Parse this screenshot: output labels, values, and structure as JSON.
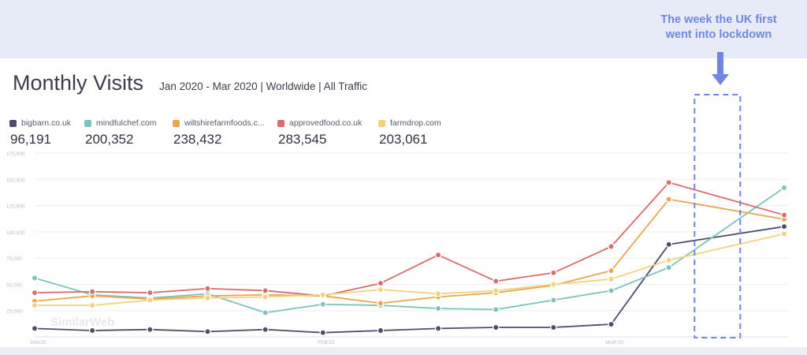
{
  "annotation": {
    "line1": "The week the UK first",
    "line2": "went into lockdown",
    "arrow_icon": "arrow-down-icon",
    "highlight_color": "#6f86e0"
  },
  "header": {
    "title": "Monthly Visits",
    "subtitle": "Jan 2020 - Mar 2020 | Worldwide | All Traffic"
  },
  "legend": [
    {
      "name": "bigbarn.co.uk",
      "total": "96,191",
      "color": "#4b4f6b"
    },
    {
      "name": "mindfulchef.com",
      "total": "200,352",
      "color": "#7cc3bb"
    },
    {
      "name": "wiltshirefarmfoods.c...",
      "total": "238,432",
      "color": "#e8a652"
    },
    {
      "name": "approvedfood.co.uk",
      "total": "283,545",
      "color": "#d96d6d"
    },
    {
      "name": "farmdrop.com",
      "total": "203,061",
      "color": "#f0d37a"
    }
  ],
  "chart_data": {
    "type": "line",
    "x_tick_labels": [
      "JAN'20",
      "FEB'20",
      "MAR'20"
    ],
    "y_tick_labels": [
      "175,000",
      "150,000",
      "125,000",
      "100,000",
      "75,000",
      "50,000",
      "25,000"
    ],
    "ylim": [
      0,
      175000
    ],
    "watermark": "SimilarWeb",
    "highlight_week_index": 12,
    "x": [
      "2020-01-01",
      "2020-01-08",
      "2020-01-15",
      "2020-01-22",
      "2020-01-29",
      "2020-02-05",
      "2020-02-12",
      "2020-02-19",
      "2020-02-26",
      "2020-03-04",
      "2020-03-11",
      "2020-03-18",
      "2020-03-25",
      "2020-04-01"
    ],
    "series": [
      {
        "name": "bigbarn.co.uk",
        "color": "#4b4f6b",
        "values": [
          8000,
          6000,
          7000,
          5000,
          7000,
          4000,
          6000,
          8000,
          9000,
          9000,
          12000,
          88000,
          null,
          105000
        ]
      },
      {
        "name": "mindfulchef.com",
        "color": "#7cc3bb",
        "values": [
          56000,
          40000,
          37000,
          41000,
          23000,
          31000,
          30000,
          27000,
          26000,
          35000,
          44000,
          66000,
          null,
          142000
        ]
      },
      {
        "name": "wiltshirefarmfoods.c...",
        "color": "#e8a652",
        "values": [
          34000,
          39000,
          36000,
          39000,
          40000,
          39000,
          32000,
          38000,
          42000,
          49000,
          63000,
          131000,
          null,
          112000
        ]
      },
      {
        "name": "approvedfood.co.uk",
        "color": "#d96d6d",
        "values": [
          42000,
          43000,
          42000,
          46000,
          44000,
          39000,
          51000,
          78000,
          53000,
          61000,
          86000,
          147000,
          null,
          116000
        ]
      },
      {
        "name": "farmdrop.com",
        "color": "#f0d37a",
        "values": [
          30000,
          30000,
          35000,
          37000,
          38000,
          40000,
          45000,
          41000,
          44000,
          50000,
          55000,
          73000,
          null,
          98000
        ]
      }
    ]
  }
}
